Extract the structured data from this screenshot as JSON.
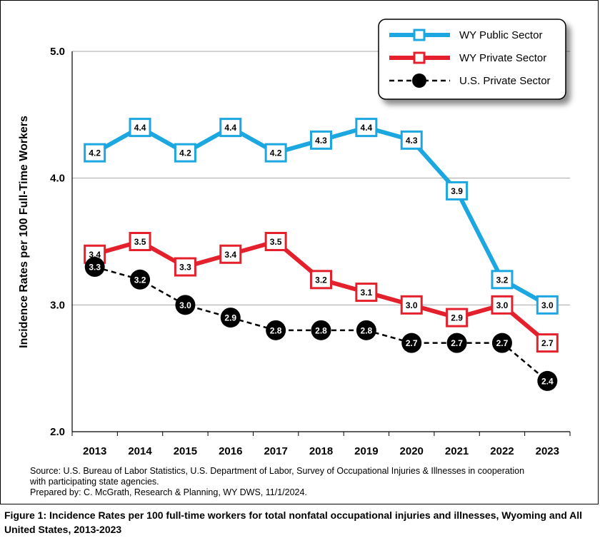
{
  "chart_data": {
    "type": "line",
    "ylabel": "Incidence Rates per 100 Full-Time Workers",
    "xlabel": "",
    "ylim": [
      2.0,
      5.0
    ],
    "yticks": [
      "2.0",
      "3.0",
      "4.0",
      "5.0"
    ],
    "grid": "horizontal",
    "legend_position": "top-right",
    "categories": [
      "2013",
      "2014",
      "2015",
      "2016",
      "2017",
      "2018",
      "2019",
      "2020",
      "2021",
      "2022",
      "2023"
    ],
    "series": [
      {
        "name": "WY Public Sector",
        "color": "#1ca7e0",
        "marker": "square",
        "line": "solid",
        "values": [
          4.2,
          4.4,
          4.2,
          4.4,
          4.2,
          4.3,
          4.4,
          4.3,
          3.9,
          3.2,
          3.0
        ]
      },
      {
        "name": "WY Private Sector",
        "color": "#e3202b",
        "marker": "square",
        "line": "solid",
        "values": [
          3.4,
          3.5,
          3.3,
          3.4,
          3.5,
          3.2,
          3.1,
          3.0,
          2.9,
          3.0,
          2.7
        ]
      },
      {
        "name": "U.S. Private Sector",
        "color": "#000000",
        "marker": "circle",
        "line": "dashed",
        "values": [
          3.3,
          3.2,
          3.0,
          2.9,
          2.8,
          2.8,
          2.8,
          2.7,
          2.7,
          2.7,
          2.4
        ]
      }
    ]
  },
  "source": {
    "line1": "Source: U.S. Bureau of Labor Statistics, U.S. Department of Labor, Survey of Occupational Injuries & Illnesses in cooperation",
    "line2": "with participating state agencies.",
    "line3": "Prepared by: C. McGrath, Research & Planning, WY DWS, 11/1/2024."
  },
  "caption": "Figure 1: Incidence Rates per 100 full-time workers for total nonfatal occupational injuries and illnesses, Wyoming and All United States, 2013-2023"
}
